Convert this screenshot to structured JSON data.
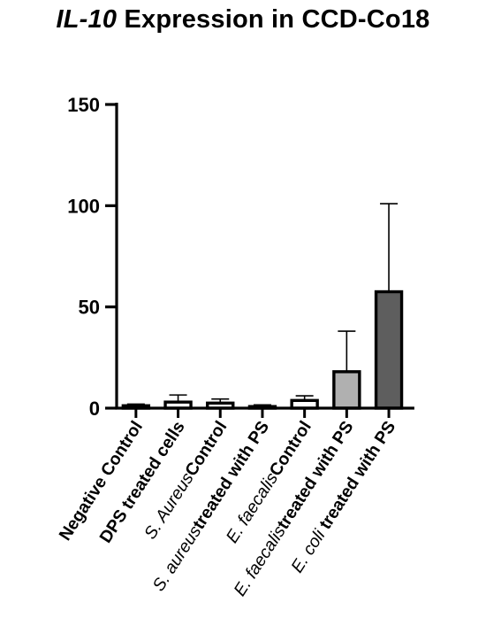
{
  "chart_data": {
    "type": "bar",
    "title_gene": "IL-10",
    "title_rest": " Expression in CCD-Co18",
    "yticks": [
      0,
      50,
      100,
      150
    ],
    "ylim": [
      0,
      150
    ],
    "categories": [
      {
        "label": [
          {
            "text": "Negative Control",
            "style": "b"
          }
        ],
        "value": 1.2,
        "error": 0.8
      },
      {
        "label": [
          {
            "text": "DPS treated cells",
            "style": "b"
          }
        ],
        "value": 3.0,
        "error": 3.5
      },
      {
        "label": [
          {
            "text": "S. Aureus",
            "style": "i"
          },
          {
            "text": "Control",
            "style": "b"
          }
        ],
        "value": 2.5,
        "error": 2.0
      },
      {
        "label": [
          {
            "text": "S. aureus",
            "style": "i"
          },
          {
            "text": "treated with PS",
            "style": "b"
          }
        ],
        "value": 0.8,
        "error": 0.8
      },
      {
        "label": [
          {
            "text": "E. faecalis",
            "style": "i"
          },
          {
            "text": "Control",
            "style": "b"
          }
        ],
        "value": 3.8,
        "error": 2.3
      },
      {
        "label": [
          {
            "text": "E. faecalis",
            "style": "i"
          },
          {
            "text": "treated with PS",
            "style": "b"
          }
        ],
        "value": 18.0,
        "error": 20.0
      },
      {
        "label": [
          {
            "text": "E. coli",
            "style": "i"
          },
          {
            "text": " treated with PS",
            "style": "b"
          }
        ],
        "value": 57.5,
        "error": 43.5
      }
    ],
    "bar_colors": [
      "#ffffff",
      "#ffffff",
      "#ffffff",
      "#ffffff",
      "#ffffff",
      "#b0b0b0",
      "#5e5e5e"
    ],
    "grid": false,
    "legend": "none"
  }
}
